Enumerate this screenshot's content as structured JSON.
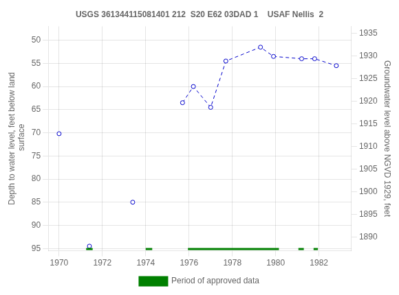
{
  "chart_data": {
    "type": "scatter",
    "title": "USGS 361344115081401 212  S20 E62 03DAD 1    USAF Nellis  2",
    "ylabel": "Depth to water level, feet below land\n surface",
    "y2label": "Groundwater level above NGVD 1929, feet",
    "xlim": [
      1969.5,
      1983.5
    ],
    "xticks": [
      1970,
      1972,
      1974,
      1976,
      1978,
      1980,
      1982
    ],
    "ylim": [
      95.5,
      47.0
    ],
    "yticks": [
      50,
      55,
      60,
      65,
      70,
      75,
      80,
      85,
      90,
      95
    ],
    "y2lim": [
      1887.0,
      1936.5
    ],
    "y2ticks": [
      1890,
      1895,
      1900,
      1905,
      1910,
      1915,
      1920,
      1925,
      1930,
      1935
    ],
    "grid": true,
    "legend": "bottom",
    "series": [
      {
        "x": [
          1970.0,
          1971.4,
          1973.4
        ],
        "values": [
          70.2,
          94.5,
          85.0
        ],
        "color": "#0000cc",
        "marker": "circle",
        "line_style": "none"
      },
      {
        "x": [
          1975.7,
          1976.2,
          1977.0,
          1977.7,
          1979.3,
          1979.9,
          1981.2,
          1981.8,
          1982.8
        ],
        "values": [
          63.5,
          60.0,
          64.5,
          54.5,
          51.5,
          53.5,
          54.0,
          54.0,
          55.5
        ],
        "color": "#0000cc",
        "marker": "circle",
        "line_style": "dashed"
      },
      {
        "name": "Period of approved data",
        "type": "bar",
        "orientation": "horizontal",
        "color": "#008000",
        "y": 95.1,
        "values": [
          [
            1971.25,
            1971.55
          ],
          [
            1974.0,
            1974.3
          ],
          [
            1975.95,
            1980.15
          ],
          [
            1981.05,
            1981.3
          ],
          [
            1981.75,
            1981.95
          ]
        ]
      }
    ]
  }
}
